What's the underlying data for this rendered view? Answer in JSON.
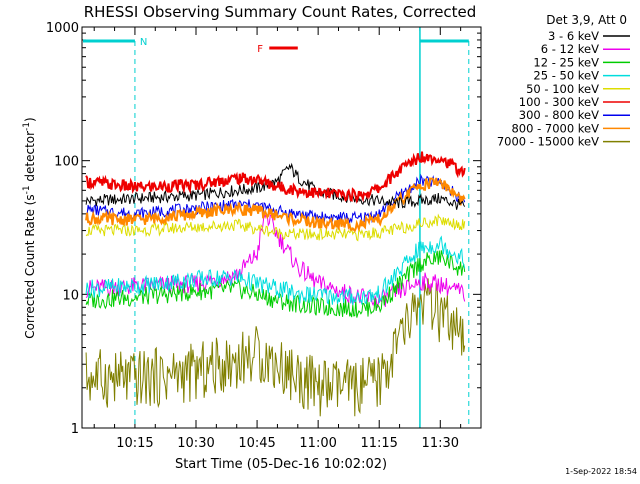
{
  "chart_data": {
    "type": "line",
    "title": "RHESSI Observing Summary Count Rates, Corrected",
    "xlabel": "Start Time (05-Dec-16 10:02:02)",
    "ylabel_parts": {
      "pre": "Corrected Count Rate (s",
      "sup1": "-1",
      "mid": " detector",
      "sup2": "-1",
      "post": ")"
    },
    "x_scale": "time",
    "y_scale": "log",
    "xlim": [
      "10:02",
      "11:40"
    ],
    "ylim": [
      1,
      1000
    ],
    "x_ticks": [
      "10:15",
      "10:30",
      "10:45",
      "11:00",
      "11:15",
      "11:30"
    ],
    "y_ticks": [
      "1",
      "10",
      "100",
      "1000"
    ],
    "legend_title": "Det 3,9, Att 0",
    "legend_position": "top-right",
    "timestamp": "1-Sep-2022 18:54",
    "annotations": [
      {
        "text": "N",
        "color": "#00d0d0"
      },
      {
        "text": "F",
        "color": "#ee0000"
      }
    ],
    "markers": {
      "night_start": "10:15",
      "night_end": "11:25",
      "night2_end": "11:37",
      "flare_start": "10:48",
      "flare_end": "10:55"
    },
    "series": [
      {
        "name": "3 - 6 keV",
        "color": "#000000",
        "points": [
          [
            "10:03",
            50
          ],
          [
            "10:15",
            52
          ],
          [
            "10:30",
            55
          ],
          [
            "10:40",
            60
          ],
          [
            "10:45",
            62
          ],
          [
            "10:50",
            70
          ],
          [
            "10:53",
            90
          ],
          [
            "10:55",
            75
          ],
          [
            "11:00",
            58
          ],
          [
            "11:10",
            52
          ],
          [
            "11:15",
            50
          ],
          [
            "11:20",
            48
          ],
          [
            "11:25",
            50
          ],
          [
            "11:30",
            52
          ],
          [
            "11:36",
            45
          ]
        ]
      },
      {
        "name": "6 - 12 keV",
        "color": "#ee00ee",
        "points": [
          [
            "10:03",
            11
          ],
          [
            "10:15",
            11.5
          ],
          [
            "10:30",
            12
          ],
          [
            "10:40",
            14
          ],
          [
            "10:45",
            20
          ],
          [
            "10:47",
            40
          ],
          [
            "10:50",
            28
          ],
          [
            "10:55",
            16
          ],
          [
            "11:00",
            12
          ],
          [
            "11:10",
            9.5
          ],
          [
            "11:15",
            9
          ],
          [
            "11:20",
            10.5
          ],
          [
            "11:25",
            12.5
          ],
          [
            "11:30",
            12
          ],
          [
            "11:36",
            10
          ]
        ]
      },
      {
        "name": "12 - 25 keV",
        "color": "#00cc00",
        "points": [
          [
            "10:03",
            9
          ],
          [
            "10:15",
            9.5
          ],
          [
            "10:30",
            10.5
          ],
          [
            "10:40",
            11
          ],
          [
            "10:45",
            10
          ],
          [
            "10:50",
            9
          ],
          [
            "10:55",
            8.5
          ],
          [
            "11:00",
            8
          ],
          [
            "11:10",
            7.8
          ],
          [
            "11:15",
            8.2
          ],
          [
            "11:20",
            12
          ],
          [
            "11:25",
            17
          ],
          [
            "11:30",
            19
          ],
          [
            "11:36",
            15
          ]
        ]
      },
      {
        "name": "25 - 50 keV",
        "color": "#00dddd",
        "points": [
          [
            "10:03",
            11
          ],
          [
            "10:15",
            11.5
          ],
          [
            "10:30",
            13
          ],
          [
            "10:40",
            13.5
          ],
          [
            "10:45",
            12
          ],
          [
            "10:50",
            11
          ],
          [
            "10:55",
            10
          ],
          [
            "11:00",
            9.8
          ],
          [
            "11:10",
            9.5
          ],
          [
            "11:15",
            10
          ],
          [
            "11:20",
            15
          ],
          [
            "11:25",
            22
          ],
          [
            "11:30",
            24
          ],
          [
            "11:36",
            18
          ]
        ]
      },
      {
        "name": "50 - 100 keV",
        "color": "#dddd00",
        "points": [
          [
            "10:03",
            30
          ],
          [
            "10:15",
            30
          ],
          [
            "10:30",
            32
          ],
          [
            "10:40",
            33
          ],
          [
            "10:45",
            31
          ],
          [
            "10:50",
            29
          ],
          [
            "10:55",
            28
          ],
          [
            "11:00",
            28
          ],
          [
            "11:10",
            28
          ],
          [
            "11:15",
            29
          ],
          [
            "11:20",
            31
          ],
          [
            "11:25",
            34
          ],
          [
            "11:30",
            36
          ],
          [
            "11:36",
            33
          ]
        ]
      },
      {
        "name": "100 - 300 keV",
        "color": "#ee0000",
        "points": [
          [
            "10:03",
            70
          ],
          [
            "10:15",
            63
          ],
          [
            "10:30",
            66
          ],
          [
            "10:40",
            74
          ],
          [
            "10:45",
            72
          ],
          [
            "10:50",
            64
          ],
          [
            "10:55",
            60
          ],
          [
            "11:00",
            57
          ],
          [
            "11:10",
            55
          ],
          [
            "11:15",
            62
          ],
          [
            "11:20",
            85
          ],
          [
            "11:25",
            108
          ],
          [
            "11:30",
            105
          ],
          [
            "11:36",
            80
          ]
        ]
      },
      {
        "name": "300 - 800 keV",
        "color": "#0000ee",
        "points": [
          [
            "10:03",
            43
          ],
          [
            "10:15",
            40
          ],
          [
            "10:30",
            44
          ],
          [
            "10:40",
            47
          ],
          [
            "10:45",
            46
          ],
          [
            "10:50",
            42
          ],
          [
            "10:55",
            40
          ],
          [
            "11:00",
            38
          ],
          [
            "11:10",
            37
          ],
          [
            "11:15",
            40
          ],
          [
            "11:20",
            55
          ],
          [
            "11:25",
            70
          ],
          [
            "11:30",
            68
          ],
          [
            "11:36",
            50
          ]
        ]
      },
      {
        "name": "800 - 7000 keV",
        "color": "#ff8800",
        "points": [
          [
            "10:03",
            37
          ],
          [
            "10:15",
            36
          ],
          [
            "10:30",
            40
          ],
          [
            "10:40",
            44
          ],
          [
            "10:45",
            42
          ],
          [
            "10:50",
            39
          ],
          [
            "10:55",
            36
          ],
          [
            "11:00",
            34
          ],
          [
            "11:10",
            33
          ],
          [
            "11:15",
            36
          ],
          [
            "11:20",
            50
          ],
          [
            "11:25",
            66
          ],
          [
            "11:30",
            70
          ],
          [
            "11:36",
            48
          ]
        ]
      },
      {
        "name": "7000 - 15000 keV",
        "color": "#808000",
        "points": [
          [
            "10:03",
            2.4
          ],
          [
            "10:15",
            2.3
          ],
          [
            "10:30",
            2.6
          ],
          [
            "10:40",
            3.2
          ],
          [
            "10:45",
            3.6
          ],
          [
            "10:50",
            3.0
          ],
          [
            "10:55",
            2.4
          ],
          [
            "11:00",
            2.0
          ],
          [
            "11:10",
            2.0
          ],
          [
            "11:15",
            2.2
          ],
          [
            "11:20",
            4.5
          ],
          [
            "11:25",
            9
          ],
          [
            "11:30",
            7
          ],
          [
            "11:36",
            4
          ]
        ]
      }
    ]
  }
}
